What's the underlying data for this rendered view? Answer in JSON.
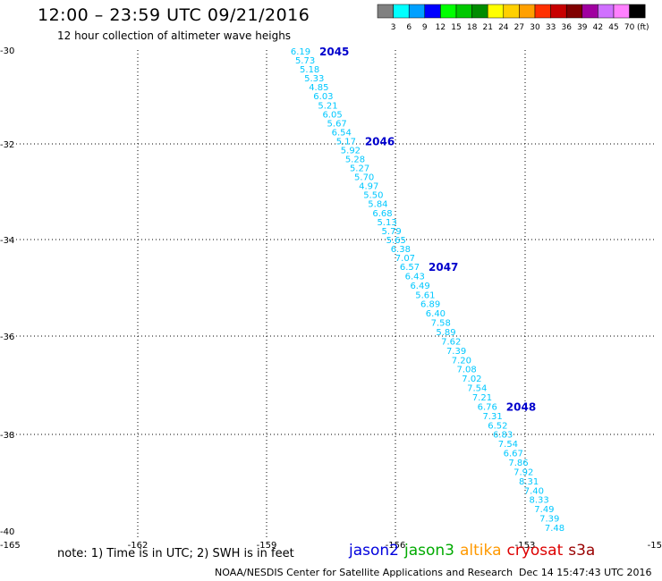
{
  "header": {
    "title": "12:00 – 23:59 UTC 09/21/2016",
    "subtitle": "12 hour collection of altimeter wave heighs"
  },
  "legend": {
    "unit": "(ft)",
    "bins": [
      {
        "color": "#808080",
        "label": "3"
      },
      {
        "color": "#00ffff",
        "label": "6"
      },
      {
        "color": "#00a0ff",
        "label": "9"
      },
      {
        "color": "#0000ff",
        "label": "12"
      },
      {
        "color": "#00ff00",
        "label": "15"
      },
      {
        "color": "#00c800",
        "label": "18"
      },
      {
        "color": "#008c00",
        "label": "21"
      },
      {
        "color": "#ffff00",
        "label": "24"
      },
      {
        "color": "#ffd000",
        "label": "27"
      },
      {
        "color": "#ffa000",
        "label": "30"
      },
      {
        "color": "#ff3000",
        "label": "33"
      },
      {
        "color": "#c80000",
        "label": "36"
      },
      {
        "color": "#800000",
        "label": "39"
      },
      {
        "color": "#a000a0",
        "label": "42"
      },
      {
        "color": "#d070ff",
        "label": "45"
      },
      {
        "color": "#ff80ff",
        "label": "70"
      },
      {
        "color": "#000000",
        "label": ""
      }
    ]
  },
  "axes": {
    "x_ticks": [
      "-165",
      "-162",
      "-159",
      "-156",
      "-153",
      "-15"
    ],
    "y_ticks": [
      "-30",
      "-32",
      "-34",
      "-36",
      "-38",
      "-40"
    ]
  },
  "track": {
    "color": "#00c8ff",
    "time_color": "#0000cc",
    "heights": [
      "6.19",
      "5.73",
      "5.18",
      "5.33",
      "4.85",
      "6.03",
      "5.21",
      "6.05",
      "5.67",
      "6.54",
      "5.17",
      "5.92",
      "5.28",
      "5.27",
      "5.70",
      "4.97",
      "5.50",
      "5.84",
      "6.68",
      "5.13",
      "5.79",
      "5.65",
      "6.38",
      "7.07",
      "6.57",
      "6.43",
      "6.49",
      "5.61",
      "6.89",
      "6.40",
      "7.58",
      "5.89",
      "7.62",
      "7.39",
      "7.20",
      "7.08",
      "7.02",
      "7.54",
      "7.21",
      "6.76",
      "7.31",
      "6.52",
      "6.83",
      "7.54",
      "6.67",
      "7.86",
      "7.92",
      "8.31",
      "7.40",
      "8.33",
      "7.49",
      "7.39",
      "7.48"
    ],
    "times": [
      {
        "label": "2045",
        "index": 0
      },
      {
        "label": "2046",
        "index": 10
      },
      {
        "label": "2047",
        "index": 24
      },
      {
        "label": "2048",
        "index": 39
      }
    ]
  },
  "footer": {
    "note": "note:  1) Time is in UTC;  2) SWH is in feet",
    "satellites": [
      {
        "name": "jason2",
        "color": "#0000dd"
      },
      {
        "name": "jason3",
        "color": "#00aa00"
      },
      {
        "name": "altika",
        "color": "#ff9900"
      },
      {
        "name": "cryosat",
        "color": "#dd0000"
      },
      {
        "name": "s3a",
        "color": "#990000"
      }
    ],
    "credit": "NOAA/NESDIS Center for Satellite Applications and Research",
    "timestamp": "Dec 14 15:47:43 UTC 2016"
  }
}
